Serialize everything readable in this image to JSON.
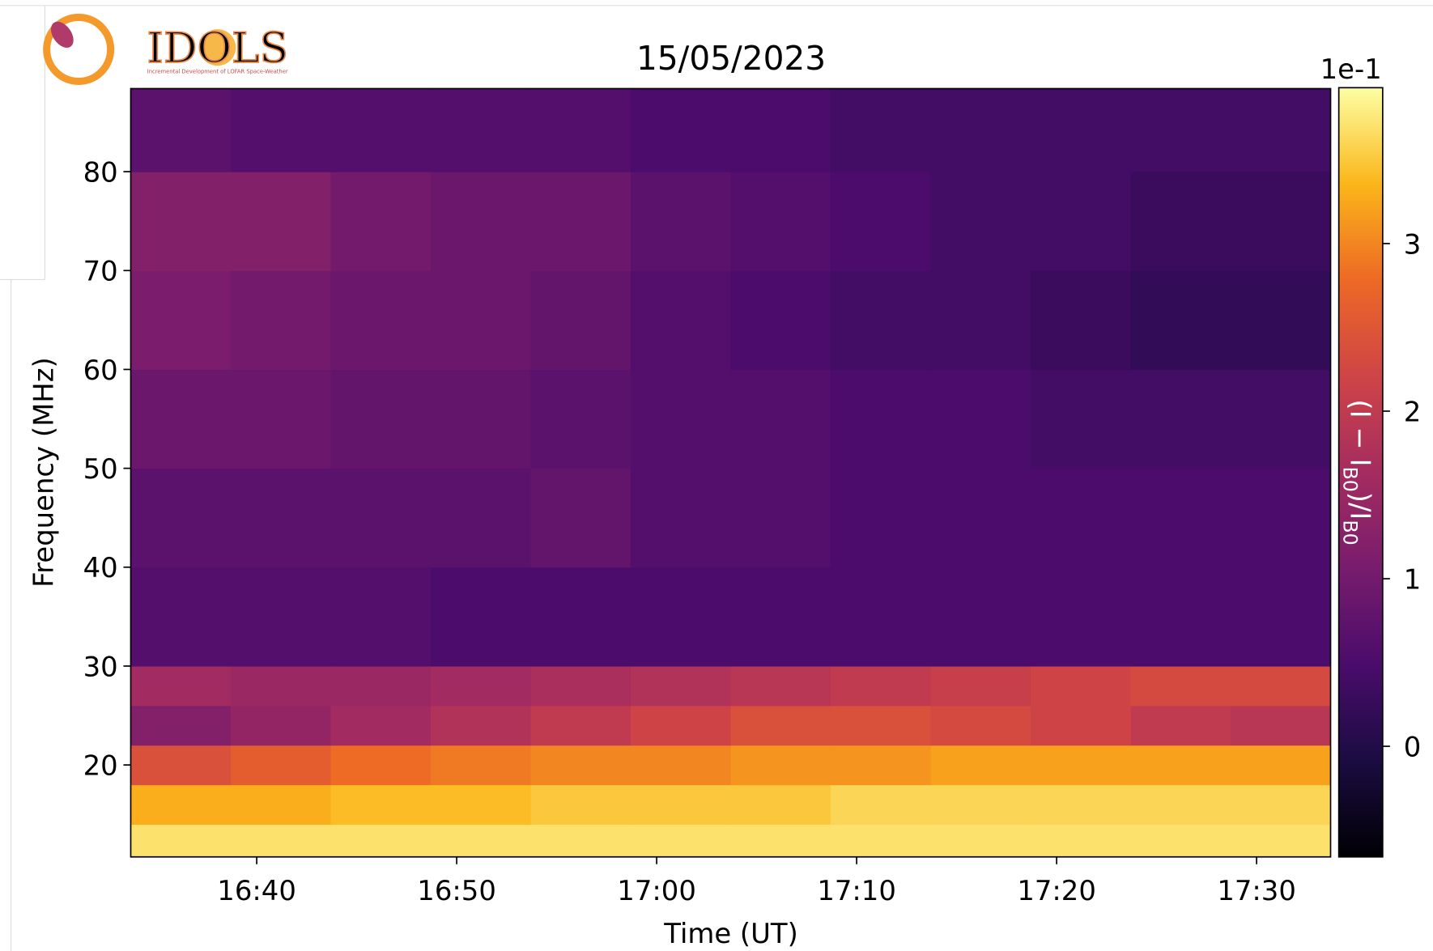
{
  "chart_data": {
    "type": "heatmap",
    "title": "15/05/2023",
    "logo_text": "IDOLS",
    "logo_subtitle": "Incremental Development of LOFAR Space-Weather",
    "x_label": "Time (UT)",
    "y_label": "Frequency (MHz)",
    "xlim": [
      993.7,
      1053.7
    ],
    "xticks": [
      {
        "value": 1000,
        "label": "16:40"
      },
      {
        "value": 1010,
        "label": "16:50"
      },
      {
        "value": 1020,
        "label": "17:00"
      },
      {
        "value": 1030,
        "label": "17:10"
      },
      {
        "value": 1040,
        "label": "17:20"
      },
      {
        "value": 1050,
        "label": "17:30"
      }
    ],
    "ylim": [
      10.7,
      88.4
    ],
    "yticks": [
      20,
      30,
      40,
      50,
      60,
      70,
      80
    ],
    "x_edges": [
      993.7,
      998.7,
      1003.7,
      1008.7,
      1013.7,
      1018.7,
      1023.7,
      1028.7,
      1033.7,
      1038.7,
      1043.7,
      1048.7,
      1053.7
    ],
    "y_edges": [
      10.7,
      14,
      18,
      22,
      26,
      30,
      40,
      50,
      60,
      70,
      80,
      88.4
    ],
    "z": [
      [
        3.7,
        3.7,
        3.7,
        3.7,
        3.7,
        3.7,
        3.7,
        3.7,
        3.7,
        3.7,
        3.7,
        3.7
      ],
      [
        3.3,
        3.3,
        3.4,
        3.4,
        3.5,
        3.5,
        3.5,
        3.6,
        3.6,
        3.6,
        3.6,
        3.6
      ],
      [
        2.4,
        2.6,
        2.8,
        2.9,
        3.0,
        3.0,
        3.1,
        3.1,
        3.2,
        3.2,
        3.2,
        3.2
      ],
      [
        1.2,
        1.4,
        1.6,
        1.8,
        2.0,
        2.2,
        2.4,
        2.4,
        2.3,
        2.2,
        2.0,
        1.9
      ],
      [
        1.6,
        1.5,
        1.5,
        1.6,
        1.7,
        1.8,
        1.9,
        2.0,
        2.1,
        2.2,
        2.3,
        2.3
      ],
      [
        0.6,
        0.6,
        0.6,
        0.5,
        0.5,
        0.5,
        0.5,
        0.5,
        0.5,
        0.5,
        0.5,
        0.5
      ],
      [
        0.7,
        0.7,
        0.7,
        0.7,
        0.8,
        0.6,
        0.6,
        0.5,
        0.5,
        0.5,
        0.5,
        0.5
      ],
      [
        0.9,
        0.9,
        0.8,
        0.8,
        0.7,
        0.6,
        0.6,
        0.5,
        0.5,
        0.4,
        0.4,
        0.4
      ],
      [
        1.1,
        1.0,
        0.9,
        0.9,
        0.8,
        0.6,
        0.5,
        0.4,
        0.4,
        0.3,
        0.2,
        0.2
      ],
      [
        1.2,
        1.2,
        1.0,
        0.9,
        0.9,
        0.7,
        0.6,
        0.5,
        0.4,
        0.4,
        0.3,
        0.3
      ],
      [
        0.7,
        0.6,
        0.6,
        0.6,
        0.6,
        0.5,
        0.5,
        0.4,
        0.4,
        0.4,
        0.4,
        0.4
      ]
    ],
    "colormap": [
      "#000004",
      "#1b0c41",
      "#4a0c6b",
      "#781c6d",
      "#a52c60",
      "#cf4446",
      "#ed6925",
      "#fbb61a",
      "#fcffa4"
    ],
    "colorbar": {
      "lim": [
        -0.66,
        3.93
      ],
      "ticks": [
        0,
        1,
        2,
        3
      ],
      "offset_label": "1e-1",
      "label_parts": [
        "(I − I",
        "B0",
        ")/I",
        "B0"
      ]
    }
  }
}
